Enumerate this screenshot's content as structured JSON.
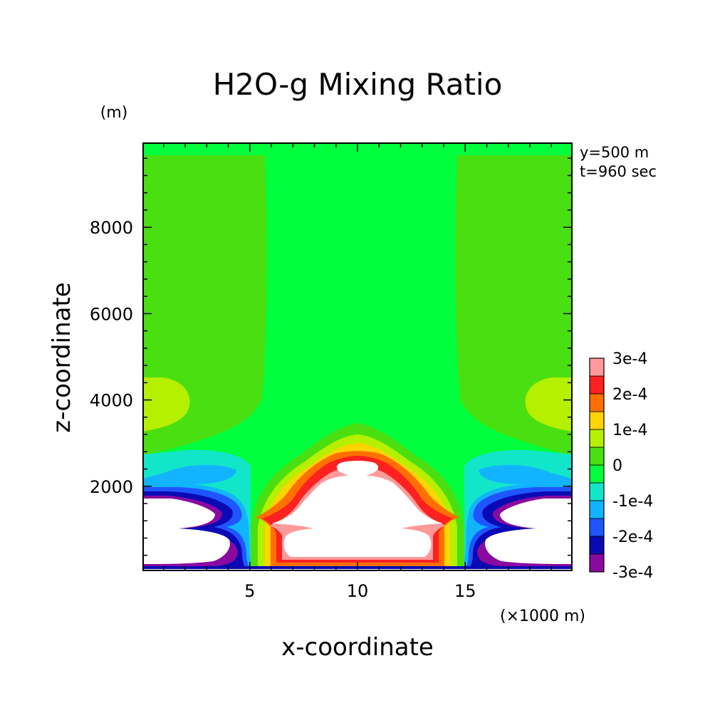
{
  "chart_data": {
    "type": "contour",
    "title": "H2O-g Mixing Ratio",
    "xlabel": "x-coordinate",
    "ylabel": "z-coordinate",
    "x_unit": "(×1000 m)",
    "y_unit": "(m)",
    "xlim": [
      0.05,
      19.95
    ],
    "ylim": [
      50,
      9950
    ],
    "x_ticks": [
      5,
      10,
      15
    ],
    "y_ticks": [
      2000,
      4000,
      6000,
      8000
    ],
    "annotations": [
      "y=500 m",
      "t=960 sec"
    ],
    "colorbar": {
      "levels": [
        -0.0003,
        -0.00025,
        -0.0002,
        -0.00015,
        -0.0001,
        -5e-05,
        0,
        5e-05,
        0.0001,
        0.00015,
        0.0002,
        0.00025,
        0.0003
      ],
      "tick_labels": [
        "-3e-4",
        "-2e-4",
        "-1e-4",
        "0",
        "1e-4",
        "2e-4",
        "3e-4"
      ],
      "tick_values": [
        -0.0003,
        -0.0002,
        -0.0001,
        0,
        0.0001,
        0.0002,
        0.0003
      ],
      "colors": [
        "#8a0aa0",
        "#0a0ab4",
        "#1f55ff",
        "#12b4ff",
        "#12e6c8",
        "#00ff3c",
        "#4adf10",
        "#b4f000",
        "#ffd400",
        "#ff7000",
        "#ff2020",
        "#ff9a9a"
      ]
    },
    "field_colors": {
      "background": "#00ff3c",
      "positive_light": "#4adf10",
      "positive_mid": "#b4f000",
      "below_min_or_above_max": "#ffffff"
    }
  }
}
